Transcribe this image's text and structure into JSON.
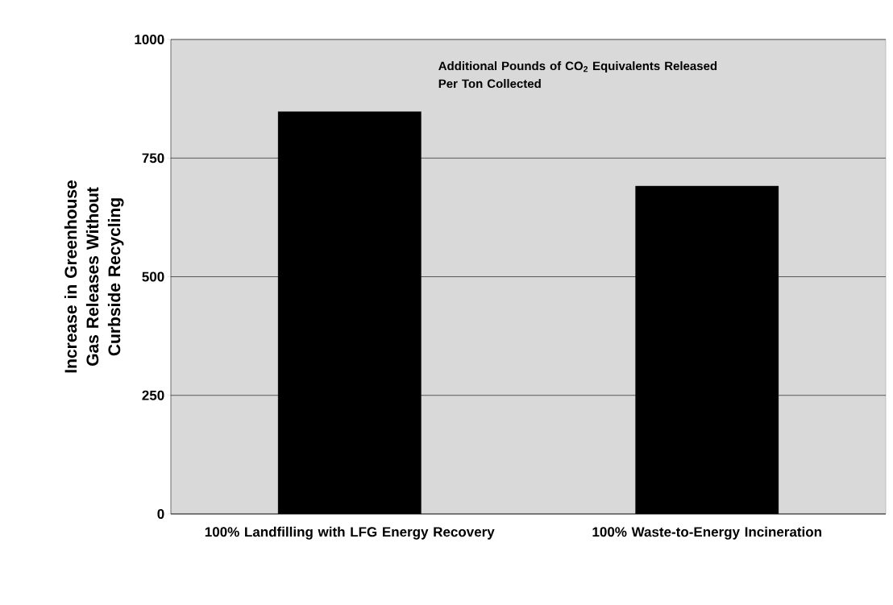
{
  "chart_data": {
    "type": "bar",
    "ylabel": "Increase in Greenhouse Gas Releases Without Curbside Recycling",
    "categories": [
      "100% Landfilling with LFG Energy Recovery",
      "100% Waste-to-Energy Incineration"
    ],
    "values": [
      848,
      691
    ],
    "color": "#000000",
    "ylim": [
      0,
      1000
    ],
    "yticks": [
      0,
      250,
      500,
      750,
      1000
    ],
    "grid": "y",
    "annotations": [
      "Additional Pounds of CO$_{2}$ Equivalents Released Per Ton Collected"
    ]
  }
}
